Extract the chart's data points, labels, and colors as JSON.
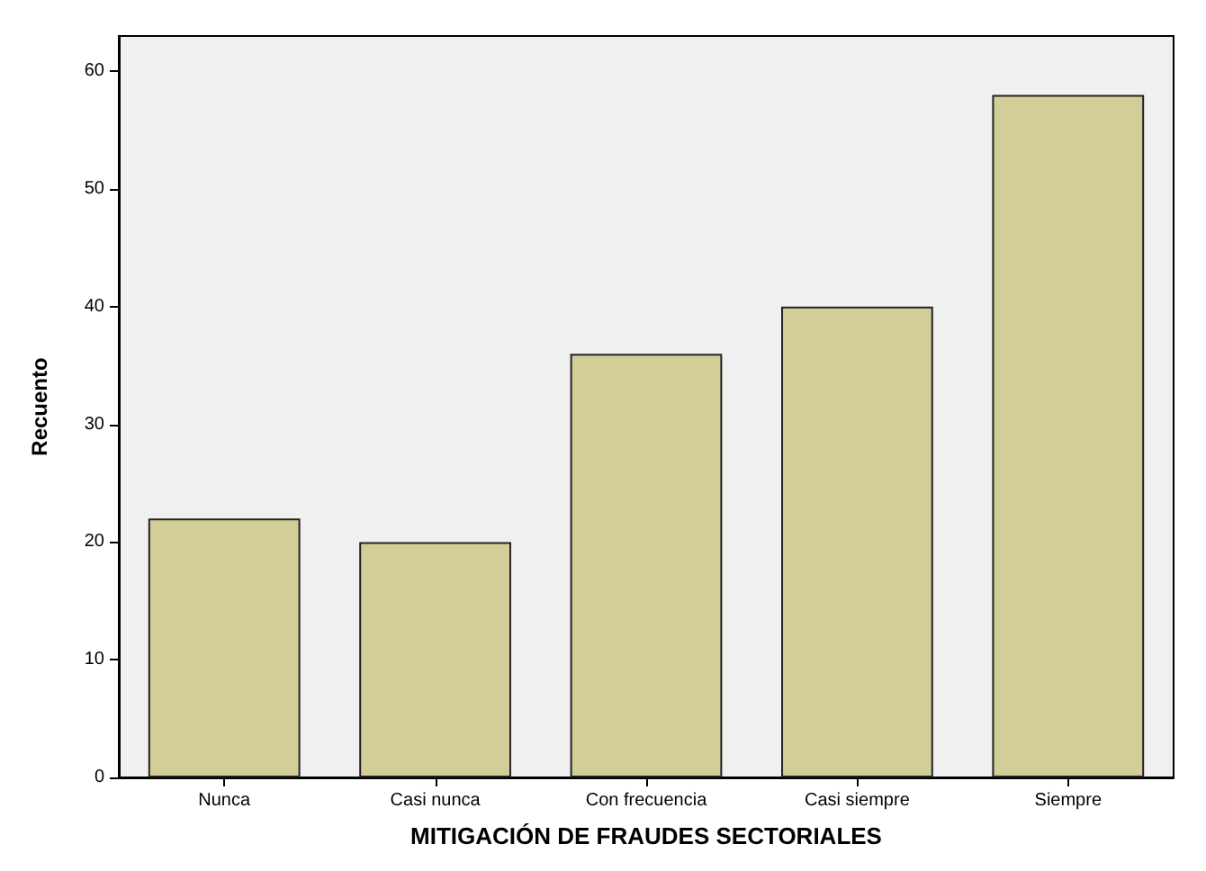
{
  "chart_data": {
    "type": "bar",
    "xlabel": "MITIGACIÓN DE FRAUDES SECTORIALES",
    "ylabel": "Recuento",
    "categories": [
      "Nunca",
      "Casi nunca",
      "Con frecuencia",
      "Casi siempre",
      "Siempre"
    ],
    "values": [
      22,
      20,
      36,
      40,
      58
    ],
    "color": "#d3ce97",
    "ylim": [
      0,
      63
    ],
    "yticks": [
      0,
      10,
      20,
      30,
      40,
      50,
      60
    ],
    "grid": false
  }
}
